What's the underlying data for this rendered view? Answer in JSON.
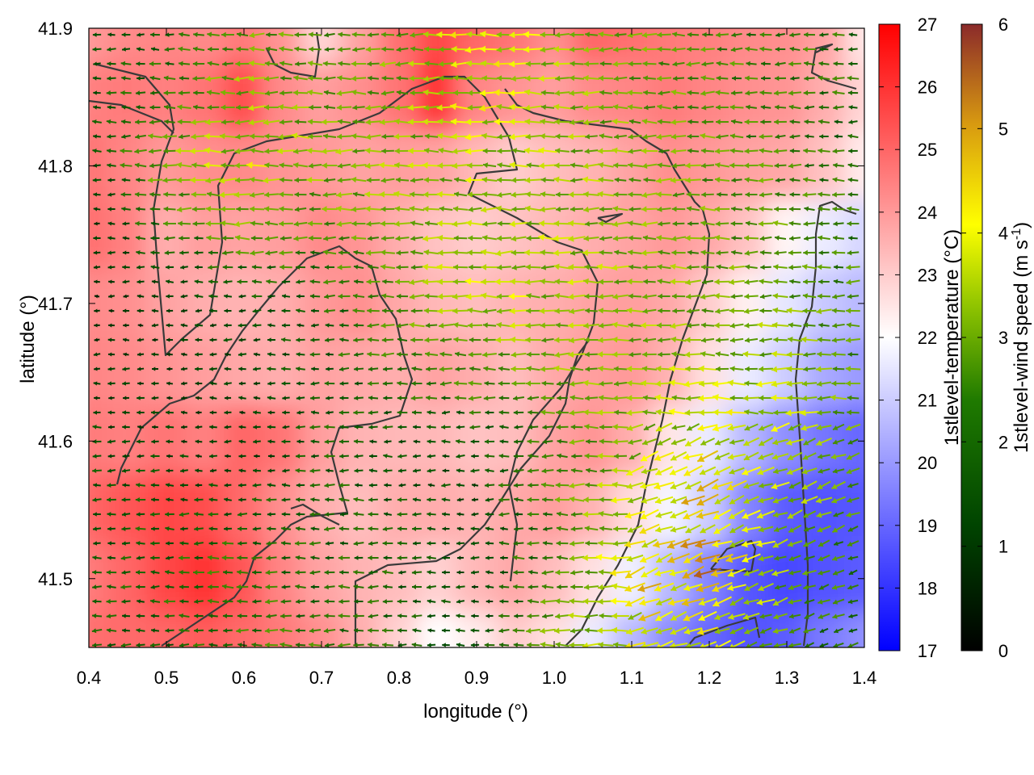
{
  "chart_data": {
    "type": "heatmap",
    "title": "",
    "xlabel": "longitude (°)",
    "ylabel": "latitude (°)",
    "xlim": [
      0.4,
      1.4
    ],
    "ylim": [
      41.45,
      41.9
    ],
    "x_ticks": [
      "0.4",
      "0.5",
      "0.6",
      "0.7",
      "0.8",
      "0.9",
      "1.0",
      "1.1",
      "1.2",
      "1.3",
      "1.4"
    ],
    "y_ticks": [
      "41.5",
      "41.6",
      "41.7",
      "41.8",
      "41.9"
    ],
    "x_tick_values": [
      0.4,
      0.5,
      0.6,
      0.7,
      0.8,
      0.9,
      1.0,
      1.1,
      1.2,
      1.3,
      1.4
    ],
    "y_tick_values": [
      41.5,
      41.6,
      41.7,
      41.8,
      41.9
    ],
    "temperature_colorbar": {
      "label_main": "1stlevel-temperature (°C)",
      "range": [
        17,
        27
      ],
      "ticks": [
        "17",
        "18",
        "19",
        "20",
        "21",
        "22",
        "23",
        "24",
        "25",
        "26",
        "27"
      ],
      "colors": [
        "#0000ff",
        "#ffffff",
        "#ff0000"
      ]
    },
    "wind_colorbar": {
      "label_main": "1stlevel-wind speed (m s",
      "label_sup": "-1",
      "label_end": ")",
      "range": [
        0,
        6
      ],
      "ticks": [
        "0",
        "1",
        "2",
        "3",
        "4",
        "5",
        "6"
      ],
      "colors": [
        "#000000",
        "#005000",
        "#6aaa00",
        "#ffff00",
        "#d08a10",
        "#8b2a2a"
      ]
    },
    "temperature_field": {
      "lon": [
        0.4,
        0.45,
        0.5,
        0.55,
        0.6,
        0.65,
        0.7,
        0.75,
        0.8,
        0.85,
        0.9,
        0.95,
        1.0,
        1.05,
        1.1,
        1.15,
        1.2,
        1.25,
        1.3,
        1.35,
        1.4
      ],
      "lat": [
        41.9,
        41.85,
        41.8,
        41.75,
        41.7,
        41.65,
        41.6,
        41.55,
        41.5,
        41.45
      ],
      "values": [
        [
          24.0,
          24.3,
          24.4,
          24.3,
          24.6,
          24.1,
          22.8,
          23.8,
          24.8,
          25.6,
          25.0,
          24.7,
          24.2,
          25.0,
          24.8,
          24.6,
          24.5,
          24.3,
          24.2,
          23.8,
          22.5
        ],
        [
          24.5,
          24.6,
          24.5,
          24.7,
          25.5,
          24.3,
          23.9,
          24.2,
          24.7,
          26.0,
          24.4,
          24.1,
          23.9,
          24.3,
          24.4,
          24.6,
          24.4,
          24.2,
          24.1,
          23.6,
          22.8
        ],
        [
          24.7,
          24.4,
          24.0,
          24.2,
          24.3,
          24.1,
          24.0,
          23.8,
          23.9,
          23.8,
          23.4,
          23.0,
          23.3,
          23.5,
          23.8,
          24.2,
          24.0,
          23.8,
          23.7,
          23.2,
          22.4
        ],
        [
          24.8,
          24.5,
          23.6,
          23.9,
          23.8,
          23.9,
          24.3,
          24.1,
          23.6,
          23.2,
          23.0,
          23.2,
          23.4,
          23.6,
          23.8,
          24.0,
          23.7,
          23.2,
          22.2,
          21.6,
          21.2
        ],
        [
          24.3,
          24.2,
          23.8,
          23.6,
          23.5,
          23.6,
          24.0,
          24.2,
          23.7,
          23.4,
          23.3,
          23.5,
          23.6,
          23.8,
          23.9,
          23.7,
          23.0,
          22.3,
          21.5,
          20.9,
          20.6
        ],
        [
          24.4,
          24.3,
          24.1,
          23.9,
          23.7,
          23.6,
          23.8,
          23.7,
          23.6,
          23.8,
          23.6,
          23.3,
          23.7,
          23.9,
          24.0,
          23.5,
          22.6,
          21.6,
          21.0,
          20.3,
          20.0
        ],
        [
          24.6,
          24.5,
          24.7,
          24.5,
          25.0,
          24.7,
          23.9,
          23.5,
          23.4,
          23.4,
          23.2,
          23.3,
          23.8,
          24.1,
          23.6,
          22.5,
          21.6,
          20.6,
          19.8,
          19.3,
          19.0
        ],
        [
          25.0,
          25.3,
          25.6,
          25.5,
          24.9,
          24.2,
          23.6,
          23.3,
          23.6,
          23.6,
          23.5,
          23.7,
          23.9,
          23.5,
          22.7,
          21.8,
          21.0,
          19.6,
          18.8,
          18.6,
          18.7
        ],
        [
          24.6,
          25.0,
          25.6,
          26.0,
          25.3,
          24.4,
          23.8,
          23.5,
          23.3,
          22.9,
          23.4,
          23.7,
          23.3,
          22.6,
          21.7,
          20.6,
          19.6,
          18.7,
          18.4,
          18.6,
          18.8
        ],
        [
          24.8,
          24.9,
          25.0,
          25.2,
          24.9,
          24.6,
          24.2,
          23.6,
          22.9,
          22.0,
          22.4,
          23.0,
          22.6,
          21.6,
          20.6,
          19.7,
          19.0,
          18.6,
          18.8,
          19.4,
          19.8
        ]
      ]
    },
    "wind_field": {
      "lon": [
        0.4,
        0.5,
        0.6,
        0.7,
        0.8,
        0.9,
        1.0,
        1.1,
        1.2,
        1.3,
        1.4
      ],
      "lat": [
        41.9,
        41.8,
        41.7,
        41.6,
        41.5,
        41.45
      ],
      "speed": [
        [
          1.2,
          1.4,
          2.2,
          2.0,
          2.4,
          3.8,
          2.6,
          2.2,
          2.0,
          1.8,
          1.6
        ],
        [
          1.0,
          2.4,
          3.2,
          2.6,
          2.6,
          2.8,
          2.8,
          2.4,
          2.2,
          2.0,
          1.4
        ],
        [
          0.6,
          0.8,
          1.2,
          1.4,
          2.2,
          3.0,
          2.8,
          2.6,
          2.4,
          2.4,
          2.0
        ],
        [
          1.2,
          1.0,
          0.8,
          1.4,
          1.2,
          1.2,
          2.0,
          2.6,
          3.4,
          3.0,
          2.2
        ],
        [
          1.4,
          1.6,
          1.8,
          1.6,
          1.4,
          1.0,
          2.0,
          3.6,
          4.4,
          2.4,
          1.6
        ],
        [
          1.2,
          1.2,
          1.8,
          2.0,
          1.6,
          1.2,
          3.0,
          2.8,
          1.8,
          1.4,
          1.2
        ]
      ],
      "direction": "from east, toward west"
    }
  }
}
